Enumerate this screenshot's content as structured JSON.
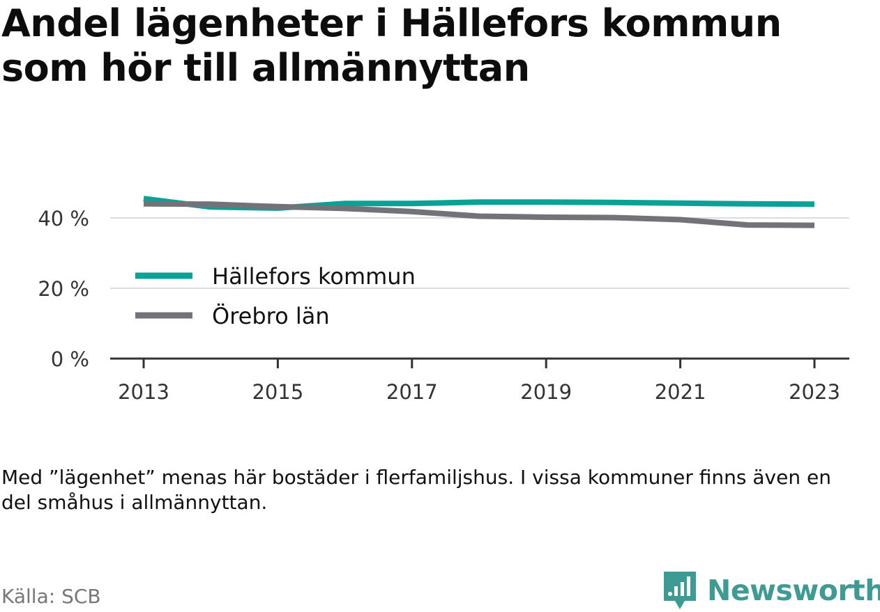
{
  "title": "Andel lägenheter i Hällefors kommun som hör till allmännyttan",
  "note": "Med ”lägenhet” menas här bostäder i flerfamiljshus. I vissa kommuner finns även en del småhus i allmännyttan.",
  "source": "Källa: SCB",
  "brand": {
    "name": "Newsworthy",
    "color": "#3e9b93"
  },
  "chart_data": {
    "type": "line",
    "x": [
      2013,
      2014,
      2015,
      2016,
      2017,
      2018,
      2019,
      2020,
      2021,
      2022,
      2023
    ],
    "x_ticks": [
      2013,
      2015,
      2017,
      2019,
      2021,
      2023
    ],
    "x_tick_labels": [
      "2013",
      "2015",
      "2017",
      "2019",
      "2021",
      "2023"
    ],
    "y_ticks": [
      0,
      20,
      40
    ],
    "y_tick_labels": [
      "0 %",
      "20 %",
      "40 %"
    ],
    "ylim": [
      0,
      46
    ],
    "grid": true,
    "legend_position": "center-left",
    "series": [
      {
        "name": "Hällefors kommun",
        "color": "#0aa196",
        "values": [
          45.5,
          43.1,
          42.8,
          44.1,
          44.1,
          44.5,
          44.5,
          44.4,
          44.2,
          44.0,
          43.9
        ]
      },
      {
        "name": "Örebro län",
        "color": "#737279",
        "values": [
          44.0,
          43.9,
          43.2,
          42.7,
          41.8,
          40.5,
          40.2,
          40.1,
          39.5,
          38.0,
          37.9
        ]
      }
    ]
  }
}
